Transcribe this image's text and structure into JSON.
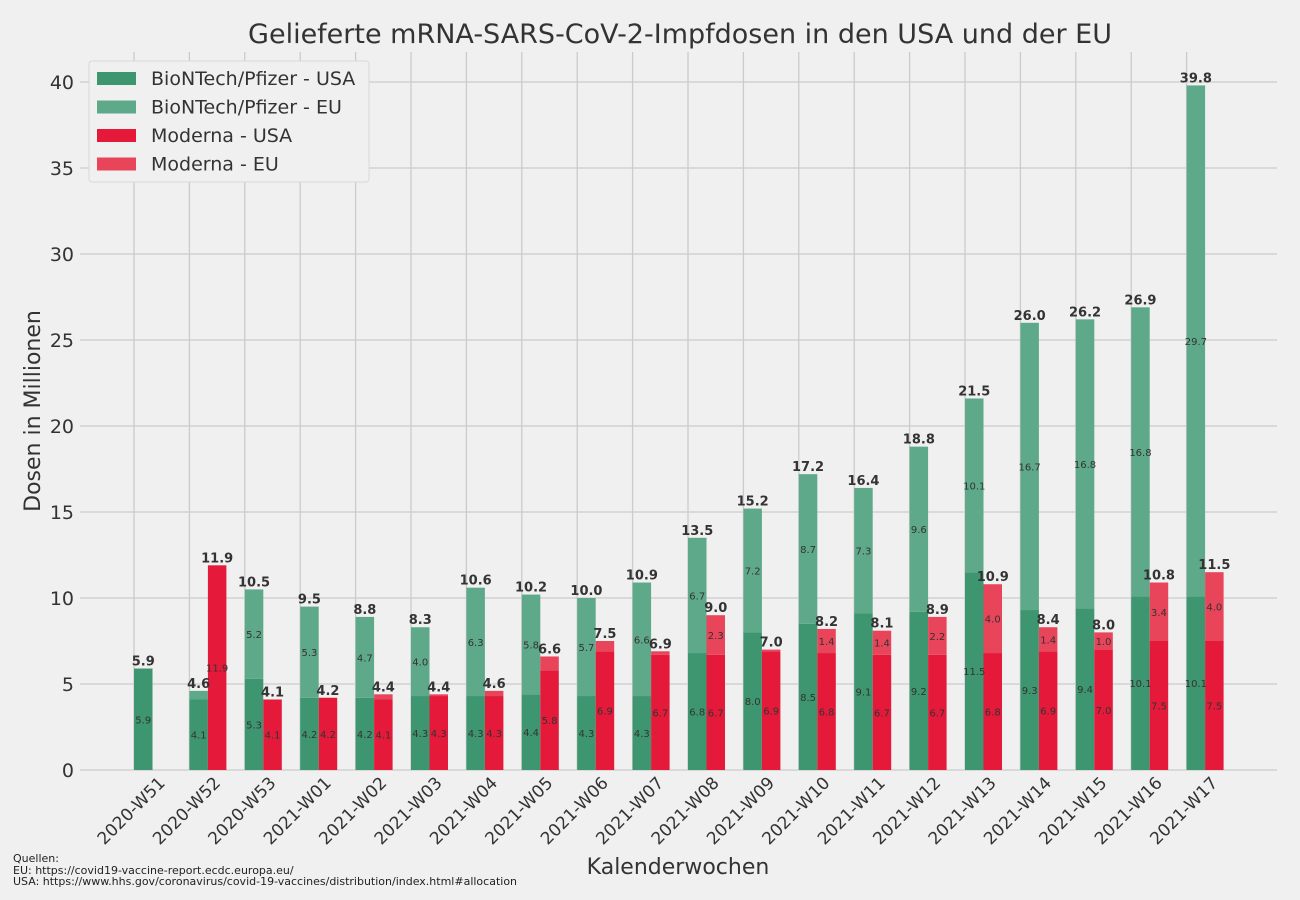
{
  "chart_data": {
    "type": "bar",
    "title": "Gelieferte mRNA-SARS-CoV-2-Impfdosen in den USA und der EU",
    "xlabel": "Kalenderwochen",
    "ylabel": "Dosen in Millionen",
    "ylim": [
      0,
      41.7
    ],
    "yticks": [
      0,
      5,
      10,
      15,
      20,
      25,
      30,
      35,
      40
    ],
    "grid": true,
    "stacked": true,
    "legend_position": "top-left",
    "categories": [
      "2020-W51",
      "2020-W52",
      "2020-W53",
      "2021-W01",
      "2021-W02",
      "2021-W03",
      "2021-W04",
      "2021-W05",
      "2021-W06",
      "2021-W07",
      "2021-W08",
      "2021-W09",
      "2021-W10",
      "2021-W11",
      "2021-W12",
      "2021-W13",
      "2021-W14",
      "2021-W15",
      "2021-W16",
      "2021-W17"
    ],
    "series": [
      {
        "name": "BioNTech/Pfizer - USA",
        "color": "#3d9670",
        "stack": "pfizer",
        "values": [
          5.9,
          4.1,
          5.3,
          4.2,
          4.2,
          4.3,
          4.3,
          4.4,
          4.3,
          4.3,
          6.8,
          8.0,
          8.5,
          9.1,
          9.2,
          11.5,
          9.3,
          9.4,
          10.1,
          10.1
        ]
      },
      {
        "name": "BioNTech/Pfizer - EU",
        "color": "#5ea98a",
        "stack": "pfizer",
        "values": [
          0,
          0.5,
          5.2,
          5.3,
          4.7,
          4.0,
          6.3,
          5.8,
          5.7,
          6.6,
          6.7,
          7.2,
          8.7,
          7.3,
          9.6,
          10.1,
          16.7,
          16.8,
          16.8,
          29.7
        ]
      },
      {
        "name": "Moderna - USA",
        "color": "#e5193a",
        "stack": "moderna",
        "values": [
          null,
          11.9,
          4.1,
          4.2,
          4.1,
          4.3,
          4.3,
          5.8,
          6.9,
          6.7,
          6.7,
          6.9,
          6.8,
          6.7,
          6.7,
          6.8,
          6.9,
          7.0,
          7.5,
          7.5
        ]
      },
      {
        "name": "Moderna - EU",
        "color": "#e8445a",
        "stack": "moderna",
        "values": [
          null,
          0,
          0,
          0,
          0.3,
          0.1,
          0.3,
          0.8,
          0.6,
          0.2,
          2.3,
          0.1,
          1.4,
          1.4,
          2.2,
          4.0,
          1.4,
          1.0,
          3.4,
          4.0
        ]
      }
    ],
    "totals": {
      "pfizer": [
        "5.9",
        "4.6",
        "10.5",
        "9.5",
        "8.8",
        "8.3",
        "10.6",
        "10.2",
        "10.0",
        "10.9",
        "13.5",
        "15.2",
        "17.2",
        "16.4",
        "18.8",
        "21.5",
        "26.0",
        "26.2",
        "26.9",
        "39.8"
      ],
      "moderna": [
        null,
        "11.9",
        "4.1",
        "4.2",
        "4.4",
        "4.4",
        "4.6",
        "6.6",
        "7.5",
        "6.9",
        "9.0",
        "7.0",
        "8.2",
        "8.1",
        "8.9",
        "10.9",
        "8.4",
        "8.0",
        "10.8",
        "11.5"
      ]
    }
  },
  "sources": {
    "heading": "Quellen:",
    "eu": "EU: https://covid19-vaccine-report.ecdc.europa.eu/",
    "usa": "USA: https://www.hhs.gov/coronavirus/covid-19-vaccines/distribution/index.html#allocation"
  }
}
